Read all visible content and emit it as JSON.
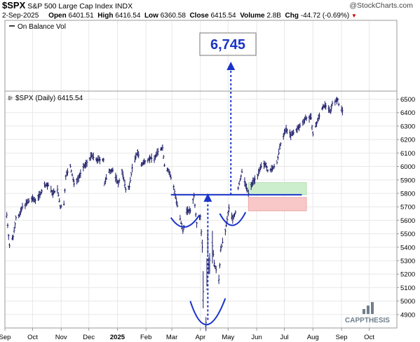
{
  "header": {
    "ticker": "$SPX",
    "name": "S&P 500 Large Cap Index",
    "exchange": "INDX",
    "date": "2-Sep-2025",
    "open_label": "Open",
    "open": "6401.51",
    "high_label": "High",
    "high": "6416.54",
    "low_label": "Low",
    "low": "6360.58",
    "close_label": "Close",
    "close": "6415.54",
    "volume_label": "Volume",
    "volume": "2.8B",
    "chg_label": "Chg",
    "chg": "-44.72 (-0.69%)",
    "chg_marker": "▼",
    "credit": "@StockCharts.com"
  },
  "obv_panel": {
    "legend": "On Balance Vol"
  },
  "price_panel": {
    "legend": "$SPX (Daily) 6415.54"
  },
  "target_box": {
    "label": "6,745"
  },
  "logo": {
    "text": "CAPPTHESIS"
  },
  "colors": {
    "bars": "#1a1a66",
    "annotation": "#1a34c8",
    "target_text": "#1a34c8",
    "green_zone": "#cdeecd",
    "red_zone": "#f8c8c8",
    "chg_down": "#cc0000",
    "logo": "#6f7f8c"
  },
  "chart_data": {
    "type": "ohlc",
    "title": "$SPX (Daily) 6415.54",
    "xlabel": "",
    "ylabel": "",
    "ylim": [
      4800,
      6560
    ],
    "yticks": [
      4900,
      5000,
      5100,
      5200,
      5300,
      5400,
      5500,
      5600,
      5700,
      5800,
      5900,
      6000,
      6100,
      6200,
      6300,
      6400,
      6500
    ],
    "xtick_labels": [
      "Sep",
      "Oct",
      "Nov",
      "Dec",
      "2025",
      "Feb",
      "Mar",
      "Apr",
      "May",
      "Jun",
      "Jul",
      "Aug",
      "Sep",
      "Oct"
    ],
    "xtick_dates": [
      "2024-09-01",
      "2024-10-01",
      "2024-11-01",
      "2024-12-01",
      "2025-01-01",
      "2025-02-01",
      "2025-03-01",
      "2025-04-01",
      "2025-05-01",
      "2025-06-01",
      "2025-07-01",
      "2025-08-01",
      "2025-09-01",
      "2025-10-01"
    ],
    "x_range": [
      "2024-09-01",
      "2025-10-31"
    ],
    "grid": true,
    "series": [
      {
        "name": "$SPX",
        "points": [
          [
            "2024-09-03",
            5640
          ],
          [
            "2024-09-06",
            5410
          ],
          [
            "2024-09-10",
            5480
          ],
          [
            "2024-09-13",
            5620
          ],
          [
            "2024-09-17",
            5640
          ],
          [
            "2024-09-20",
            5700
          ],
          [
            "2024-09-25",
            5730
          ],
          [
            "2024-09-30",
            5760
          ],
          [
            "2024-10-04",
            5750
          ],
          [
            "2024-10-09",
            5790
          ],
          [
            "2024-10-14",
            5860
          ],
          [
            "2024-10-18",
            5860
          ],
          [
            "2024-10-23",
            5800
          ],
          [
            "2024-10-28",
            5830
          ],
          [
            "2024-10-31",
            5700
          ],
          [
            "2024-11-04",
            5720
          ],
          [
            "2024-11-06",
            5930
          ],
          [
            "2024-11-11",
            6000
          ],
          [
            "2024-11-15",
            5870
          ],
          [
            "2024-11-20",
            5920
          ],
          [
            "2024-11-25",
            5990
          ],
          [
            "2024-11-29",
            6030
          ],
          [
            "2024-12-04",
            6080
          ],
          [
            "2024-12-09",
            6050
          ],
          [
            "2024-12-13",
            6050
          ],
          [
            "2024-12-17",
            6050
          ],
          [
            "2024-12-18",
            5870
          ],
          [
            "2024-12-23",
            5970
          ],
          [
            "2024-12-27",
            5970
          ],
          [
            "2025-01-02",
            5870
          ],
          [
            "2025-01-06",
            5970
          ],
          [
            "2025-01-10",
            5830
          ],
          [
            "2025-01-14",
            5850
          ],
          [
            "2025-01-17",
            5990
          ],
          [
            "2025-01-23",
            6110
          ],
          [
            "2025-01-27",
            6010
          ],
          [
            "2025-01-31",
            6040
          ],
          [
            "2025-02-05",
            6060
          ],
          [
            "2025-02-10",
            6060
          ],
          [
            "2025-02-14",
            6110
          ],
          [
            "2025-02-19",
            6140
          ],
          [
            "2025-02-21",
            6010
          ],
          [
            "2025-02-26",
            5960
          ],
          [
            "2025-03-03",
            5850
          ],
          [
            "2025-03-06",
            5740
          ],
          [
            "2025-03-10",
            5610
          ],
          [
            "2025-03-13",
            5520
          ],
          [
            "2025-03-17",
            5670
          ],
          [
            "2025-03-21",
            5670
          ],
          [
            "2025-03-25",
            5780
          ],
          [
            "2025-03-28",
            5580
          ],
          [
            "2025-04-01",
            5630
          ],
          [
            "2025-04-03",
            5400
          ],
          [
            "2025-04-04",
            5070
          ],
          [
            "2025-04-07",
            4840
          ],
          [
            "2025-04-09",
            5460
          ],
          [
            "2025-04-10",
            5270
          ],
          [
            "2025-04-14",
            5410
          ],
          [
            "2025-04-16",
            5280
          ],
          [
            "2025-04-21",
            5160
          ],
          [
            "2025-04-23",
            5380
          ],
          [
            "2025-04-28",
            5520
          ],
          [
            "2025-05-02",
            5690
          ],
          [
            "2025-05-06",
            5610
          ],
          [
            "2025-05-09",
            5660
          ],
          [
            "2025-05-12",
            5840
          ],
          [
            "2025-05-16",
            5960
          ],
          [
            "2025-05-21",
            5840
          ],
          [
            "2025-05-23",
            5800
          ],
          [
            "2025-05-28",
            5890
          ],
          [
            "2025-06-02",
            5930
          ],
          [
            "2025-06-06",
            6000
          ],
          [
            "2025-06-11",
            6020
          ],
          [
            "2025-06-13",
            5970
          ],
          [
            "2025-06-18",
            5980
          ],
          [
            "2025-06-23",
            6030
          ],
          [
            "2025-06-27",
            6170
          ],
          [
            "2025-07-03",
            6280
          ],
          [
            "2025-07-08",
            6230
          ],
          [
            "2025-07-14",
            6270
          ],
          [
            "2025-07-18",
            6300
          ],
          [
            "2025-07-24",
            6360
          ],
          [
            "2025-07-30",
            6360
          ],
          [
            "2025-08-01",
            6240
          ],
          [
            "2025-08-06",
            6340
          ],
          [
            "2025-08-12",
            6450
          ],
          [
            "2025-08-15",
            6450
          ],
          [
            "2025-08-20",
            6400
          ],
          [
            "2025-08-22",
            6470
          ],
          [
            "2025-08-28",
            6500
          ],
          [
            "2025-08-29",
            6460
          ],
          [
            "2025-09-02",
            6415
          ]
        ]
      }
    ],
    "annotations": {
      "neckline": 5790,
      "target": 6745,
      "green_zone": [
        5790,
        5880
      ],
      "red_zone": [
        5670,
        5770
      ],
      "zone_dates": [
        "2025-05-23",
        "2025-07-25"
      ]
    }
  }
}
